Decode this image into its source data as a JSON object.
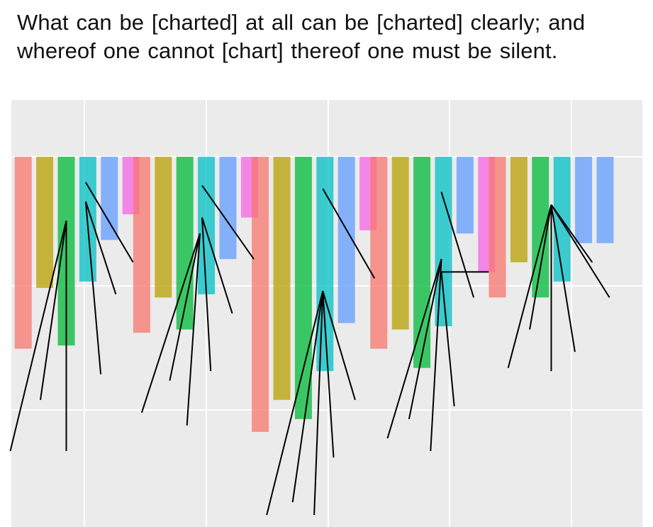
{
  "caption": {
    "line1": "What can be [charted] at all can be [charted] clearly; and",
    "line2": "whereof one cannot [chart] thereof one must be silent."
  },
  "colors": {
    "panel_bg": "#ebebeb",
    "grid": "#ffffff",
    "whisker": "#000000",
    "palette": [
      "#f8766d",
      "#b79f00",
      "#00ba38",
      "#00bfc4",
      "#619cff",
      "#f564e3"
    ]
  },
  "chart_data": {
    "type": "bar",
    "xlabel": "",
    "ylabel": "",
    "tick_labels_shown": false,
    "grid": true,
    "legend": "none",
    "ylim": [
      -5.6,
      0.8
    ],
    "x_range": [
      0,
      29
    ],
    "bar_alpha": 0.75,
    "series_colors": [
      "#f8766d",
      "#b79f00",
      "#00ba38",
      "#00bfc4",
      "#619cff",
      "#f564e3"
    ],
    "groups": [
      {
        "bars": [
          {
            "x": 1.0,
            "value": -3.0,
            "color": 0
          },
          {
            "x": 2.0,
            "value": -2.05,
            "color": 1
          },
          {
            "x": 3.0,
            "value": -2.95,
            "color": 2,
            "whiskers": [
              [
                3.0,
                -1.0,
                0.4,
                -4.6
              ],
              [
                3.0,
                -1.0,
                3.0,
                -4.6
              ],
              [
                3.0,
                -1.0,
                1.8,
                -3.8
              ]
            ]
          },
          {
            "x": 4.0,
            "value": -1.95,
            "color": 3,
            "whiskers": [
              [
                3.9,
                -0.4,
                6.1,
                -1.65
              ],
              [
                3.9,
                -0.7,
                5.3,
                -2.15
              ],
              [
                3.9,
                -0.7,
                4.6,
                -3.4
              ]
            ]
          },
          {
            "x": 5.0,
            "value": -1.3,
            "color": 4
          },
          {
            "x": 6.0,
            "value": -0.9,
            "color": 5
          }
        ]
      },
      {
        "bars": [
          {
            "x": 6.5,
            "value": -2.75,
            "color": 0
          },
          {
            "x": 7.5,
            "value": -2.2,
            "color": 1
          },
          {
            "x": 8.5,
            "value": -2.7,
            "color": 2,
            "whiskers": [
              [
                9.2,
                -1.2,
                6.5,
                -4.0
              ],
              [
                9.2,
                -1.2,
                7.8,
                -3.5
              ],
              [
                9.2,
                -1.2,
                8.6,
                -4.2
              ]
            ]
          },
          {
            "x": 9.5,
            "value": -2.15,
            "color": 3,
            "whiskers": [
              [
                9.3,
                -0.45,
                11.7,
                -1.6
              ],
              [
                9.3,
                -0.95,
                10.7,
                -2.45
              ],
              [
                9.3,
                -0.95,
                9.7,
                -3.35
              ]
            ]
          },
          {
            "x": 10.5,
            "value": -1.6,
            "color": 4
          },
          {
            "x": 11.5,
            "value": -0.95,
            "color": 5
          }
        ]
      },
      {
        "bars": [
          {
            "x": 12.0,
            "value": -4.3,
            "color": 0
          },
          {
            "x": 13.0,
            "value": -3.8,
            "color": 1
          },
          {
            "x": 14.0,
            "value": -4.1,
            "color": 2,
            "whiskers": [
              [
                14.9,
                -2.1,
                12.3,
                -5.6
              ],
              [
                14.9,
                -2.1,
                13.5,
                -5.4
              ],
              [
                14.9,
                -2.1,
                14.5,
                -5.6
              ]
            ]
          },
          {
            "x": 15.0,
            "value": -3.35,
            "color": 3,
            "whiskers": [
              [
                14.9,
                -0.5,
                17.3,
                -1.9
              ],
              [
                14.9,
                -2.1,
                15.4,
                -4.7
              ],
              [
                14.9,
                -2.1,
                16.4,
                -3.8
              ]
            ]
          },
          {
            "x": 16.0,
            "value": -2.6,
            "color": 4
          },
          {
            "x": 17.0,
            "value": -1.15,
            "color": 5
          }
        ]
      },
      {
        "bars": [
          {
            "x": 17.5,
            "value": -3.0,
            "color": 0
          },
          {
            "x": 18.5,
            "value": -2.7,
            "color": 1
          },
          {
            "x": 19.5,
            "value": -3.3,
            "color": 2,
            "whiskers": [
              [
                20.4,
                -1.6,
                17.9,
                -4.4
              ],
              [
                20.4,
                -1.6,
                18.9,
                -4.1
              ],
              [
                20.4,
                -1.6,
                19.9,
                -4.6
              ]
            ]
          },
          {
            "x": 20.5,
            "value": -2.65,
            "color": 3,
            "whiskers": [
              [
                20.4,
                -0.55,
                21.9,
                -2.2
              ],
              [
                20.4,
                -1.8,
                22.6,
                -1.8
              ],
              [
                20.4,
                -1.8,
                21.0,
                -3.9
              ]
            ]
          },
          {
            "x": 21.5,
            "value": -1.2,
            "color": 4
          },
          {
            "x": 22.5,
            "value": -1.8,
            "color": 5
          }
        ]
      },
      {
        "bars": [
          {
            "x": 23.0,
            "value": -2.2,
            "color": 0
          },
          {
            "x": 24.0,
            "value": -1.65,
            "color": 1
          },
          {
            "x": 25.0,
            "value": -2.2,
            "color": 2,
            "whiskers": [
              [
                25.5,
                -0.75,
                23.5,
                -3.3
              ],
              [
                25.5,
                -0.75,
                24.5,
                -2.7
              ],
              [
                25.5,
                -0.75,
                25.5,
                -3.35
              ]
            ]
          },
          {
            "x": 26.0,
            "value": -1.95,
            "color": 3,
            "whiskers": [
              [
                25.5,
                -0.75,
                28.2,
                -2.2
              ],
              [
                25.5,
                -0.75,
                26.6,
                -3.05
              ],
              [
                25.5,
                -0.75,
                27.4,
                -1.65
              ]
            ]
          },
          {
            "x": 27.0,
            "value": -1.35,
            "color": 4
          },
          {
            "x": 28.0,
            "value": -1.35,
            "color": 4
          }
        ]
      }
    ]
  }
}
